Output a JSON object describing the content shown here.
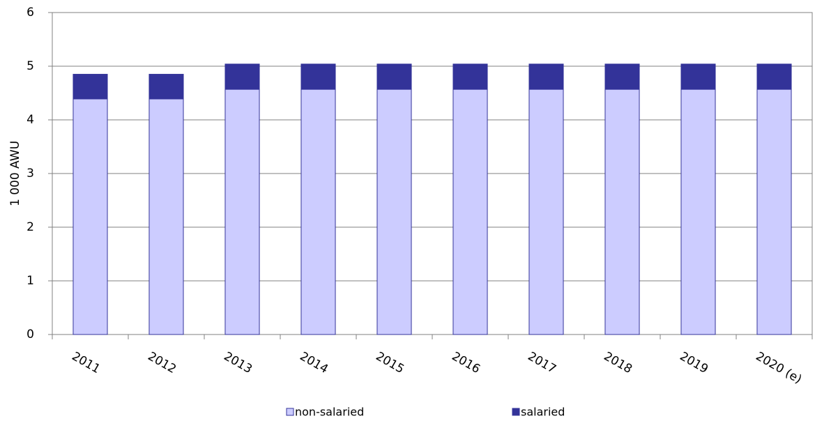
{
  "chart_data": {
    "type": "stacked_bar",
    "y_label": "1 000 AWU",
    "categories": [
      "2011",
      "2012",
      "2013",
      "2014",
      "2015",
      "2016",
      "2017",
      "2018",
      "2019",
      "2020 (e)"
    ],
    "series": [
      {
        "name": "non-salaried",
        "color": "#ccccff",
        "values": [
          4.39,
          4.39,
          4.57,
          4.57,
          4.57,
          4.57,
          4.57,
          4.57,
          4.57,
          4.57
        ]
      },
      {
        "name": "salaried",
        "color": "#333399",
        "values": [
          0.46,
          0.46,
          0.47,
          0.47,
          0.47,
          0.47,
          0.47,
          0.47,
          0.47,
          0.47
        ]
      }
    ],
    "ylim": [
      0,
      6
    ],
    "yticks": [
      0,
      1,
      2,
      3,
      4,
      5,
      6
    ],
    "grid": true,
    "legend": "bottom"
  }
}
